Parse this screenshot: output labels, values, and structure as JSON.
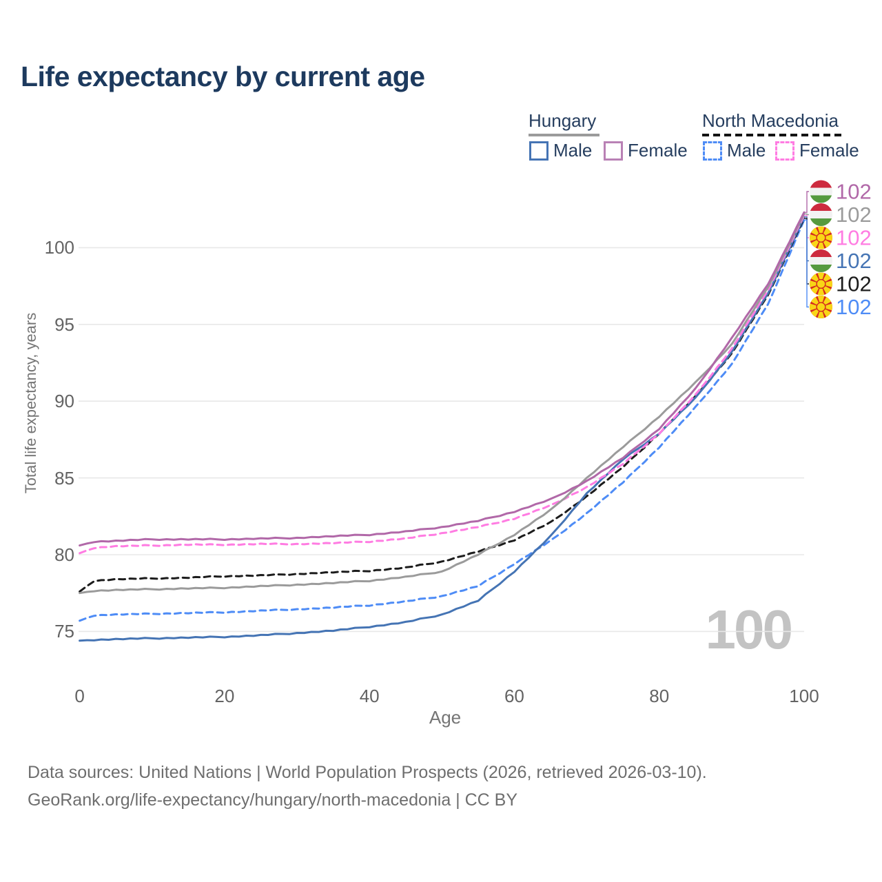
{
  "title": "Life expectancy by current age",
  "watermark": "100",
  "legend": {
    "groups": [
      {
        "label": "Hungary",
        "underline": {
          "style": "solid",
          "color": "#9b9b9b"
        },
        "items": [
          {
            "label": "Male",
            "color": "#4574b4",
            "dashed": false
          },
          {
            "label": "Female",
            "color": "#b981b5",
            "dashed": false
          }
        ]
      },
      {
        "label": "North Macedonia",
        "underline": {
          "style": "dashed",
          "color": "#141414"
        },
        "items": [
          {
            "label": "Male",
            "color": "#4e8cf6",
            "dashed": true
          },
          {
            "label": "Female",
            "color": "#ff7ce2",
            "dashed": true
          }
        ]
      }
    ]
  },
  "footer": {
    "line1": "Data sources: United Nations | World Population Prospects (2026, retrieved 2026-03-10).",
    "line2": "GeoRank.org/life-expectancy/hungary/north-macedonia | CC BY"
  },
  "chart_data": {
    "type": "line",
    "title": "Life expectancy by current age",
    "xlabel": "Age",
    "ylabel": "Total life expectancy, years",
    "x_ticks": [
      0,
      20,
      40,
      60,
      80,
      100
    ],
    "y_ticks": [
      75,
      80,
      85,
      90,
      95,
      100
    ],
    "xlim": [
      0,
      100
    ],
    "ylim": [
      73.5,
      103
    ],
    "grid": true,
    "legend_position": "top-right",
    "x": [
      0,
      2,
      5,
      10,
      15,
      20,
      25,
      30,
      35,
      40,
      45,
      50,
      55,
      60,
      65,
      70,
      75,
      80,
      85,
      90,
      95,
      100
    ],
    "series": [
      {
        "name": "Hungary Female",
        "country": "Hungary",
        "sex": "Female",
        "flag": "hu",
        "color": "#b168a8",
        "dashed": false,
        "end_label": "102",
        "values": [
          80.6,
          80.85,
          80.9,
          81.0,
          81.0,
          81.0,
          81.05,
          81.1,
          81.2,
          81.3,
          81.5,
          81.8,
          82.2,
          82.8,
          83.6,
          84.8,
          86.3,
          88.2,
          90.8,
          94.1,
          97.6,
          102.3
        ]
      },
      {
        "name": "Hungary Total",
        "country": "Hungary",
        "sex": "Both",
        "flag": "hu",
        "color": "#9b9b9b",
        "dashed": false,
        "end_label": "102",
        "values": [
          77.5,
          77.65,
          77.7,
          77.75,
          77.8,
          77.85,
          77.95,
          78.05,
          78.15,
          78.3,
          78.55,
          78.9,
          80.0,
          81.3,
          82.9,
          85.0,
          87.0,
          89.0,
          91.2,
          93.7,
          97.4,
          102.2
        ]
      },
      {
        "name": "North Macedonia Female",
        "country": "North Macedonia",
        "sex": "Female",
        "flag": "mk",
        "color": "#ff7ce2",
        "dashed": true,
        "end_label": "102",
        "values": [
          80.1,
          80.45,
          80.55,
          80.6,
          80.65,
          80.65,
          80.7,
          80.7,
          80.75,
          80.85,
          81.05,
          81.4,
          81.8,
          82.35,
          83.2,
          84.4,
          85.9,
          87.9,
          90.4,
          93.4,
          97.2,
          102.1
        ]
      },
      {
        "name": "Hungary Male",
        "country": "Hungary",
        "sex": "Male",
        "flag": "hu",
        "color": "#4574b4",
        "dashed": false,
        "end_label": "102",
        "values": [
          74.4,
          74.45,
          74.5,
          74.55,
          74.6,
          74.65,
          74.75,
          74.9,
          75.05,
          75.3,
          75.6,
          76.1,
          77.0,
          78.9,
          81.2,
          84.0,
          86.2,
          87.9,
          90.2,
          93.2,
          97.0,
          102.0
        ]
      },
      {
        "name": "North Macedonia Total",
        "country": "North Macedonia",
        "sex": "Both",
        "flag": "mk",
        "color": "#1c1c1c",
        "dashed": true,
        "end_label": "102",
        "values": [
          77.6,
          78.3,
          78.4,
          78.45,
          78.5,
          78.6,
          78.65,
          78.75,
          78.85,
          78.95,
          79.15,
          79.55,
          80.2,
          80.95,
          82.1,
          83.8,
          85.7,
          87.9,
          90.3,
          93.1,
          96.9,
          101.9
        ]
      },
      {
        "name": "North Macedonia Male",
        "country": "North Macedonia",
        "sex": "Male",
        "flag": "mk",
        "color": "#4e8cf6",
        "dashed": true,
        "end_label": "102",
        "values": [
          75.7,
          76.05,
          76.1,
          76.15,
          76.2,
          76.25,
          76.35,
          76.45,
          76.55,
          76.7,
          76.95,
          77.3,
          77.95,
          79.4,
          80.9,
          82.7,
          84.7,
          87.0,
          89.6,
          92.4,
          96.3,
          101.8
        ]
      }
    ]
  }
}
